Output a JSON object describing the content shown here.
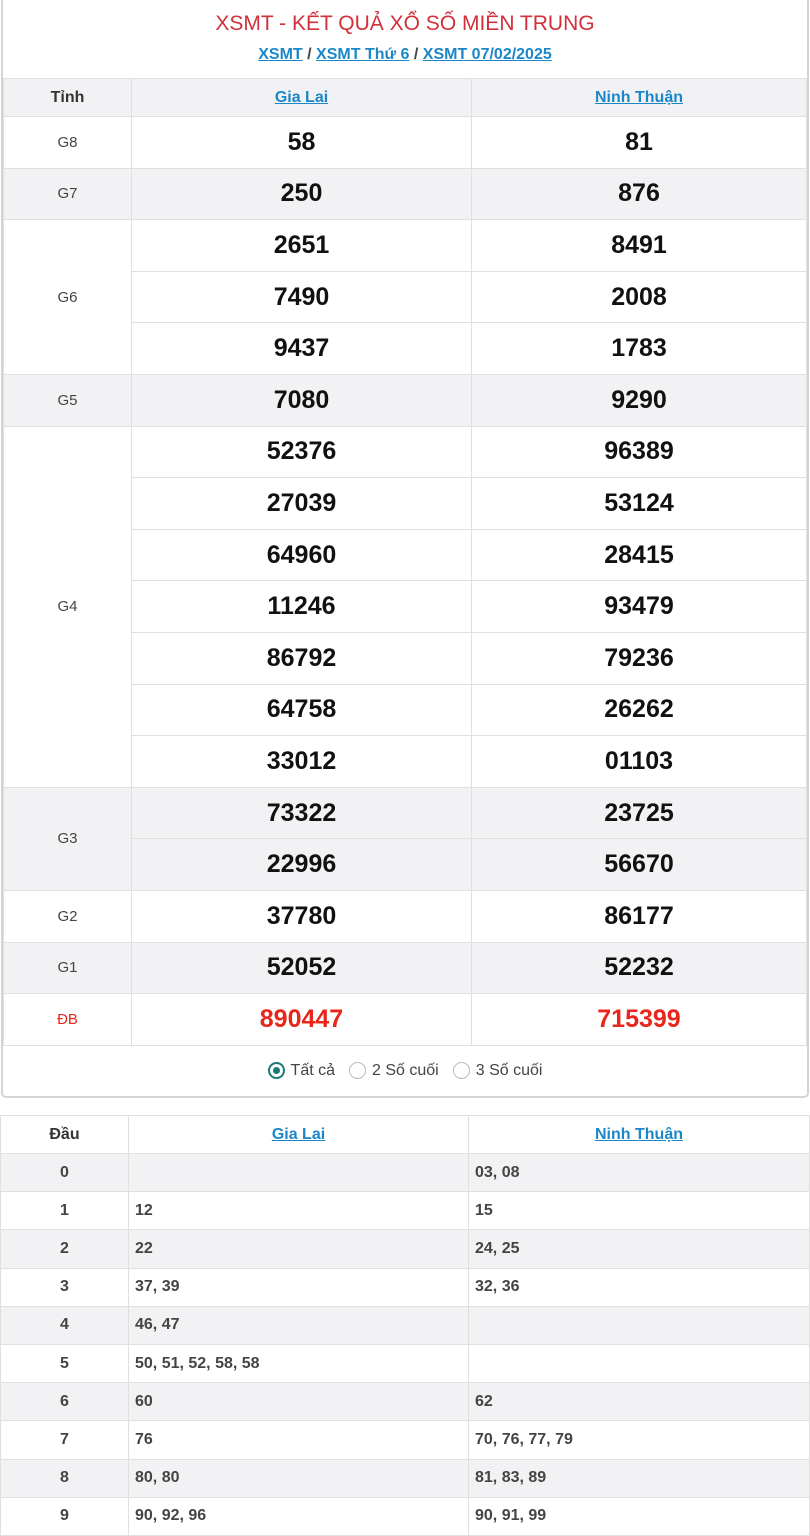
{
  "header": {
    "title": "XSMT - KẾT QUẢ XỔ SỐ MIỀN TRUNG",
    "breadcrumb": [
      "XSMT",
      "XSMT Thứ 6",
      "XSMT 07/02/2025"
    ],
    "separator": "/"
  },
  "results": {
    "col_label": "Tỉnh",
    "provinces": [
      "Gia Lai",
      "Ninh Thuận"
    ],
    "prizes": [
      {
        "label": "G8",
        "values": [
          [
            "58",
            "81"
          ]
        ]
      },
      {
        "label": "G7",
        "values": [
          [
            "250",
            "876"
          ]
        ]
      },
      {
        "label": "G6",
        "values": [
          [
            "2651",
            "8491"
          ],
          [
            "7490",
            "2008"
          ],
          [
            "9437",
            "1783"
          ]
        ]
      },
      {
        "label": "G5",
        "values": [
          [
            "7080",
            "9290"
          ]
        ]
      },
      {
        "label": "G4",
        "values": [
          [
            "52376",
            "96389"
          ],
          [
            "27039",
            "53124"
          ],
          [
            "64960",
            "28415"
          ],
          [
            "11246",
            "93479"
          ],
          [
            "86792",
            "79236"
          ],
          [
            "64758",
            "26262"
          ],
          [
            "33012",
            "01103"
          ]
        ]
      },
      {
        "label": "G3",
        "values": [
          [
            "73322",
            "23725"
          ],
          [
            "22996",
            "56670"
          ]
        ]
      },
      {
        "label": "G2",
        "values": [
          [
            "37780",
            "86177"
          ]
        ]
      },
      {
        "label": "G1",
        "values": [
          [
            "52052",
            "52232"
          ]
        ]
      },
      {
        "label": "ĐB",
        "values": [
          [
            "890447",
            "715399"
          ]
        ],
        "special": true
      }
    ],
    "filter": {
      "options": [
        "Tất cả",
        "2 Số cuối",
        "3 Số cuối"
      ],
      "selected": 0
    }
  },
  "loto": {
    "col_label": "Đầu",
    "provinces": [
      "Gia Lai",
      "Ninh Thuận"
    ],
    "rows": [
      [
        "0",
        "",
        "03, 08"
      ],
      [
        "1",
        "12",
        "15"
      ],
      [
        "2",
        "22",
        "24, 25"
      ],
      [
        "3",
        "37, 39",
        "32, 36"
      ],
      [
        "4",
        "46, 47",
        ""
      ],
      [
        "5",
        "50, 51, 52, 58, 58",
        ""
      ],
      [
        "6",
        "60",
        "62"
      ],
      [
        "7",
        "76",
        "70, 76, 77, 79"
      ],
      [
        "8",
        "80, 80",
        "81, 83, 89"
      ],
      [
        "9",
        "90, 92, 96",
        "90, 91, 99"
      ]
    ]
  },
  "colors": {
    "title": "#d0313b",
    "link": "#1b87c9",
    "special": "#e8261b",
    "radio": "#1a7a76"
  }
}
